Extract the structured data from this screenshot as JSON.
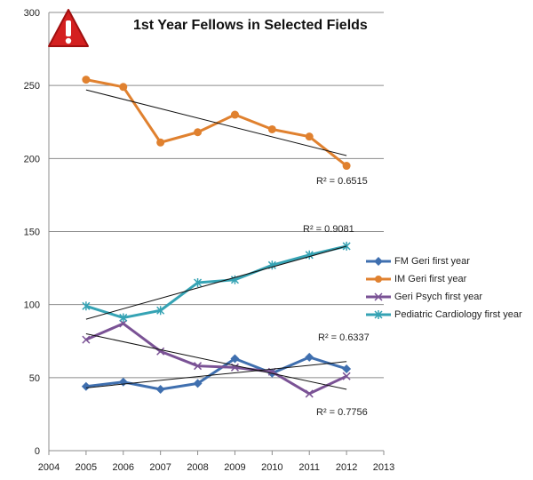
{
  "chart_data": {
    "type": "line",
    "title": "1st Year Fellows in Selected Fields",
    "x": [
      2005,
      2006,
      2007,
      2008,
      2009,
      2010,
      2011,
      2012
    ],
    "xlim": [
      2004,
      2013
    ],
    "ylim": [
      0,
      300
    ],
    "xticks": [
      2004,
      2005,
      2006,
      2007,
      2008,
      2009,
      2010,
      2011,
      2012,
      2013
    ],
    "yticks": [
      0,
      50,
      100,
      150,
      200,
      250,
      300
    ],
    "grid": "horizontal",
    "legend_position": "right",
    "series": [
      {
        "name": "FM Geri first year",
        "color": "#3f6faf",
        "marker": "diamond",
        "values": [
          44,
          47,
          42,
          46,
          63,
          53,
          64,
          56
        ],
        "trendline": [
          43,
          61
        ],
        "r2_label": "R² = 0.7756"
      },
      {
        "name": "IM Geri first year",
        "color": "#e0812f",
        "marker": "circle",
        "values": [
          254,
          249,
          211,
          218,
          230,
          220,
          215,
          195
        ],
        "trendline": [
          247,
          202
        ],
        "r2_label": "R² = 0.6515"
      },
      {
        "name": "Geri Psych first year",
        "color": "#7a5295",
        "marker": "x",
        "values": [
          76,
          87,
          68,
          58,
          57,
          54,
          39,
          51
        ],
        "trendline": [
          80,
          42
        ],
        "r2_label": "R² = 0.6337"
      },
      {
        "name": "Pediatric Cardiology first year",
        "color": "#35a3b4",
        "marker": "star",
        "values": [
          99,
          91,
          96,
          115,
          117,
          127,
          134,
          140
        ],
        "trendline": [
          90,
          140
        ],
        "r2_label": "R² = 0.9081"
      }
    ]
  },
  "icon": "warning-icon",
  "icon_color": "#d42020"
}
